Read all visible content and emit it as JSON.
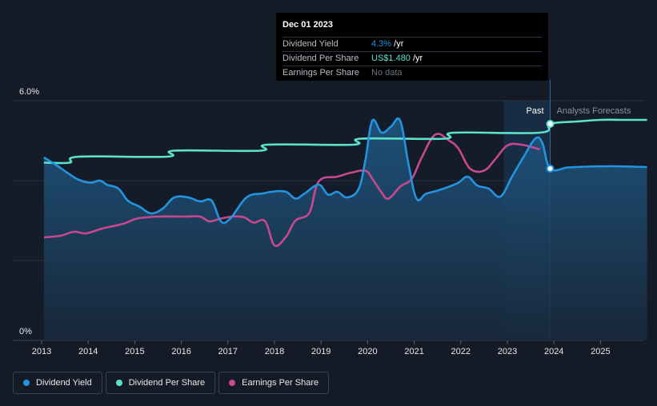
{
  "chart_data": {
    "type": "line",
    "x_range": [
      2013,
      2026
    ],
    "ylim": [
      0,
      6.0
    ],
    "y_axis_labels": [
      "6.0%",
      "0%"
    ],
    "x_ticks": [
      "2013",
      "2014",
      "2015",
      "2016",
      "2017",
      "2018",
      "2019",
      "2020",
      "2021",
      "2022",
      "2023",
      "2024",
      "2025"
    ],
    "regions": {
      "past_label": "Past",
      "forecast_label": "Analysts Forecasts"
    },
    "series": [
      {
        "name": "Dividend Yield",
        "color": "#2394df",
        "points": [
          [
            2013.05,
            4.58
          ],
          [
            2013.3,
            4.4
          ],
          [
            2013.55,
            4.2
          ],
          [
            2013.8,
            4.02
          ],
          [
            2014.05,
            3.95
          ],
          [
            2014.25,
            4.0
          ],
          [
            2014.4,
            3.9
          ],
          [
            2014.65,
            3.8
          ],
          [
            2014.85,
            3.5
          ],
          [
            2015.1,
            3.35
          ],
          [
            2015.35,
            3.18
          ],
          [
            2015.6,
            3.3
          ],
          [
            2015.85,
            3.58
          ],
          [
            2016.15,
            3.58
          ],
          [
            2016.4,
            3.48
          ],
          [
            2016.65,
            3.5
          ],
          [
            2016.85,
            2.98
          ],
          [
            2017.05,
            3.05
          ],
          [
            2017.4,
            3.58
          ],
          [
            2017.75,
            3.68
          ],
          [
            2018.0,
            3.73
          ],
          [
            2018.25,
            3.72
          ],
          [
            2018.45,
            3.55
          ],
          [
            2018.65,
            3.68
          ],
          [
            2018.95,
            3.9
          ],
          [
            2019.15,
            3.65
          ],
          [
            2019.35,
            3.72
          ],
          [
            2019.55,
            3.58
          ],
          [
            2019.8,
            3.78
          ],
          [
            2019.95,
            4.5
          ],
          [
            2020.1,
            5.5
          ],
          [
            2020.3,
            5.2
          ],
          [
            2020.5,
            5.35
          ],
          [
            2020.7,
            5.5
          ],
          [
            2020.88,
            4.4
          ],
          [
            2021.05,
            3.55
          ],
          [
            2021.25,
            3.67
          ],
          [
            2021.5,
            3.75
          ],
          [
            2021.75,
            3.85
          ],
          [
            2021.95,
            3.95
          ],
          [
            2022.15,
            4.1
          ],
          [
            2022.35,
            3.88
          ],
          [
            2022.6,
            3.8
          ],
          [
            2022.85,
            3.6
          ],
          [
            2023.1,
            4.1
          ],
          [
            2023.35,
            4.6
          ],
          [
            2023.6,
            5.05
          ],
          [
            2023.75,
            4.95
          ],
          [
            2023.92,
            4.3
          ],
          [
            2024.3,
            4.33
          ],
          [
            2024.7,
            4.35
          ],
          [
            2025.2,
            4.36
          ],
          [
            2025.7,
            4.35
          ],
          [
            2026.0,
            4.34
          ]
        ]
      },
      {
        "name": "Dividend Per Share",
        "color": "#5ce1cb",
        "points": [
          [
            2013.05,
            4.45
          ],
          [
            2013.6,
            4.45
          ],
          [
            2013.8,
            4.6
          ],
          [
            2015.7,
            4.6
          ],
          [
            2015.85,
            4.75
          ],
          [
            2017.7,
            4.75
          ],
          [
            2017.85,
            4.9
          ],
          [
            2019.7,
            4.9
          ],
          [
            2019.85,
            5.05
          ],
          [
            2021.65,
            5.05
          ],
          [
            2021.85,
            5.2
          ],
          [
            2023.7,
            5.2
          ],
          [
            2023.92,
            5.42
          ],
          [
            2024.5,
            5.48
          ],
          [
            2025.0,
            5.52
          ],
          [
            2025.5,
            5.52
          ],
          [
            2026.0,
            5.52
          ]
        ]
      },
      {
        "name": "Earnings Per Share",
        "color": "#c8488f",
        "points": [
          [
            2013.05,
            2.58
          ],
          [
            2013.4,
            2.62
          ],
          [
            2013.7,
            2.72
          ],
          [
            2013.95,
            2.68
          ],
          [
            2014.3,
            2.8
          ],
          [
            2014.75,
            2.92
          ],
          [
            2015.05,
            3.05
          ],
          [
            2015.5,
            3.1
          ],
          [
            2016.05,
            3.1
          ],
          [
            2016.4,
            3.1
          ],
          [
            2016.6,
            2.98
          ],
          [
            2016.85,
            3.05
          ],
          [
            2017.1,
            3.1
          ],
          [
            2017.35,
            3.08
          ],
          [
            2017.55,
            2.95
          ],
          [
            2017.8,
            2.98
          ],
          [
            2018.0,
            2.38
          ],
          [
            2018.25,
            2.6
          ],
          [
            2018.45,
            3.0
          ],
          [
            2018.75,
            3.2
          ],
          [
            2018.95,
            3.98
          ],
          [
            2019.35,
            4.1
          ],
          [
            2019.65,
            4.2
          ],
          [
            2019.95,
            4.25
          ],
          [
            2020.1,
            4.05
          ],
          [
            2020.3,
            3.7
          ],
          [
            2020.45,
            3.55
          ],
          [
            2020.7,
            3.85
          ],
          [
            2020.95,
            4.05
          ],
          [
            2021.15,
            4.55
          ],
          [
            2021.45,
            5.15
          ],
          [
            2021.75,
            5.0
          ],
          [
            2021.95,
            4.8
          ],
          [
            2022.2,
            4.3
          ],
          [
            2022.5,
            4.25
          ],
          [
            2022.75,
            4.55
          ],
          [
            2023.0,
            4.88
          ],
          [
            2023.3,
            4.9
          ],
          [
            2023.7,
            4.78
          ]
        ]
      }
    ]
  },
  "tooltip": {
    "date": "Dec 01 2023",
    "rows": [
      {
        "label": "Dividend Yield",
        "value": "4.3%",
        "unit": " /yr"
      },
      {
        "label": "Dividend Per Share",
        "value": "US$1.480",
        "unit": " /yr"
      },
      {
        "label": "Earnings Per Share",
        "value": "No data"
      }
    ]
  },
  "legend": {
    "items": [
      {
        "label": "Dividend Yield",
        "color": "#2394df"
      },
      {
        "label": "Dividend Per Share",
        "color": "#5ce1cb"
      },
      {
        "label": "Earnings Per Share",
        "color": "#c8488f"
      }
    ]
  }
}
